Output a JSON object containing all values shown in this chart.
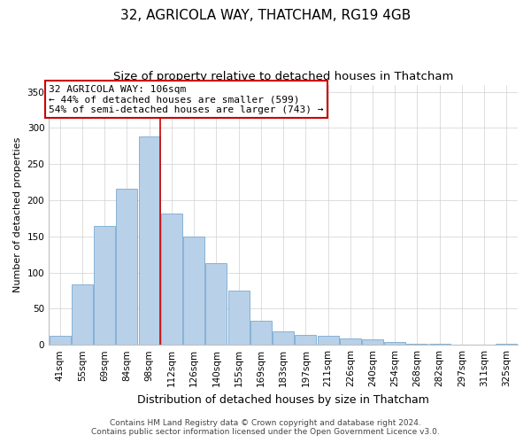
{
  "title": "32, AGRICOLA WAY, THATCHAM, RG19 4GB",
  "subtitle": "Size of property relative to detached houses in Thatcham",
  "xlabel": "Distribution of detached houses by size in Thatcham",
  "ylabel": "Number of detached properties",
  "bar_labels": [
    "41sqm",
    "55sqm",
    "69sqm",
    "84sqm",
    "98sqm",
    "112sqm",
    "126sqm",
    "140sqm",
    "155sqm",
    "169sqm",
    "183sqm",
    "197sqm",
    "211sqm",
    "226sqm",
    "240sqm",
    "254sqm",
    "268sqm",
    "282sqm",
    "297sqm",
    "311sqm",
    "325sqm"
  ],
  "bar_values": [
    12,
    84,
    164,
    216,
    288,
    182,
    150,
    113,
    75,
    33,
    18,
    14,
    12,
    9,
    7,
    4,
    1,
    1,
    0,
    0,
    1
  ],
  "bar_color": "#b8d0e8",
  "bar_edge_color": "#7aaad0",
  "vline_x_idx": 5,
  "vline_color": "#cc0000",
  "annotation_title": "32 AGRICOLA WAY: 106sqm",
  "annotation_line1": "← 44% of detached houses are smaller (599)",
  "annotation_line2": "54% of semi-detached houses are larger (743) →",
  "annotation_box_color": "#ffffff",
  "annotation_box_edge": "#cc0000",
  "ylim": [
    0,
    360
  ],
  "yticks": [
    0,
    50,
    100,
    150,
    200,
    250,
    300,
    350
  ],
  "footnote1": "Contains HM Land Registry data © Crown copyright and database right 2024.",
  "footnote2": "Contains public sector information licensed under the Open Government Licence v3.0.",
  "background_color": "#ffffff",
  "title_fontsize": 11,
  "subtitle_fontsize": 9.5,
  "xlabel_fontsize": 9,
  "ylabel_fontsize": 8,
  "tick_fontsize": 7.5,
  "footnote_fontsize": 6.5,
  "annotation_fontsize": 8
}
